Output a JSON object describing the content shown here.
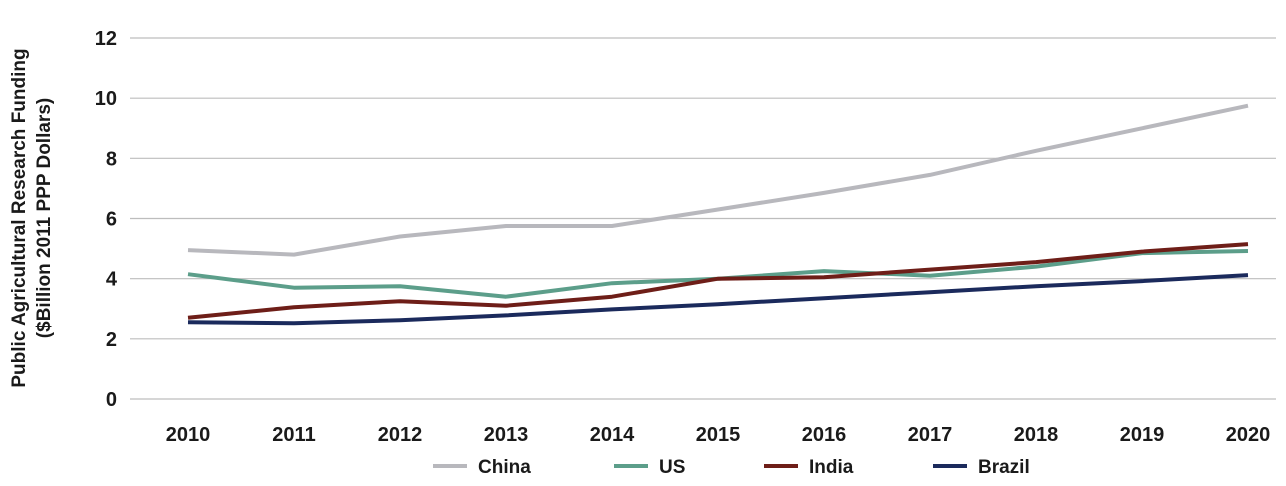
{
  "chart_data": {
    "type": "line",
    "title": "",
    "xlabel": "",
    "ylabel_lines": [
      "Public Agricultural Research Funding",
      "($Billion 2011 PPP Dollars)"
    ],
    "ylim": [
      0,
      12
    ],
    "yticks": [
      0,
      2,
      4,
      6,
      8,
      10,
      12
    ],
    "x": [
      "2010",
      "2011",
      "2012",
      "2013",
      "2014",
      "2015",
      "2016",
      "2017",
      "2018",
      "2019",
      "2020"
    ],
    "grid": true,
    "legend_position": "bottom",
    "series": [
      {
        "name": "China",
        "color": "#b8b8bd",
        "values": [
          4.95,
          4.8,
          5.4,
          5.75,
          5.75,
          6.3,
          6.85,
          7.45,
          8.25,
          9.0,
          9.75
        ]
      },
      {
        "name": "US",
        "color": "#5c9e8a",
        "values": [
          4.15,
          3.7,
          3.75,
          3.4,
          3.85,
          4.0,
          4.25,
          4.1,
          4.4,
          4.85,
          4.92
        ]
      },
      {
        "name": "India",
        "color": "#6e1e18",
        "values": [
          2.7,
          3.05,
          3.25,
          3.1,
          3.4,
          4.0,
          4.05,
          4.3,
          4.55,
          4.9,
          5.15
        ]
      },
      {
        "name": "Brazil",
        "color": "#1b2a5c",
        "values": [
          2.55,
          2.52,
          2.62,
          2.78,
          2.98,
          3.15,
          3.35,
          3.55,
          3.75,
          3.92,
          4.12
        ]
      }
    ]
  }
}
